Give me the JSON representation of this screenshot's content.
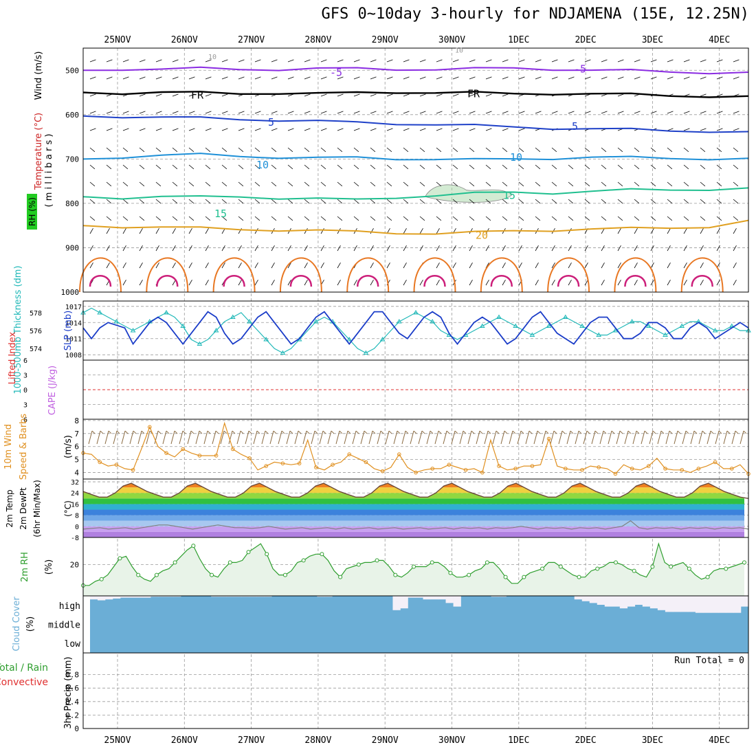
{
  "title": "GFS 0~10day 3-hourly for NDJAMENA (15E, 12.25N)",
  "colors": {
    "wind_barb": "#000000",
    "temp_m5": "#8a2be2",
    "temp_fr": "#000000",
    "temp_5": "#1e40c8",
    "temp_10": "#1e90d8",
    "temp_15": "#1fbf8f",
    "temp_20": "#e0a020",
    "temp_25": "#e87722",
    "temp_30": "#cc1f7a",
    "rh": "#a8d8a8",
    "slp": "#1a3cc8",
    "thickness": "#20b8b8",
    "lifted_index": "#e03030",
    "cape": "#c060e0",
    "wind10m": "#e09020",
    "temp2m_fill": "#e06020",
    "dewpt": "#808080",
    "rh2m": "#2e9e2e",
    "cloud": "#6baed6",
    "precip_total": "#2e9e2e",
    "precip_conv": "#e03030"
  },
  "dates": [
    "25NOV",
    "26NOV",
    "27NOV",
    "28NOV",
    "29NOV",
    "30NOV",
    "1DEC",
    "2DEC",
    "3DEC",
    "4DEC"
  ],
  "panels": {
    "upper": {
      "ylabel_wind": "Wind (m/s)",
      "ylabel_temp": "Temperature (°C)",
      "ylabel_rh": "RH (%)",
      "ylabel_mb": "( m i l l i b a r s )",
      "contour_labels": {
        "m5": "-5",
        "fr": "FR",
        "five": "5",
        "ten": "10",
        "fifteen": "15",
        "twenty": "20",
        "rh10": "10"
      }
    },
    "slp": {
      "ylabel_thick": "1000-500mb Thickness (dm)",
      "ylabel_slp": "SLP (mb)"
    },
    "li": {
      "ylabel_li": "Lifted Index",
      "ylabel_cape": "CAPE (J/kg)"
    },
    "wind": {
      "ylabel_main": "10m Wind",
      "ylabel_sub": "Speed & Barbs",
      "ylabel_unit": "(m/s)"
    },
    "temp": {
      "ylabel_1": "2m Temp",
      "ylabel_2": "2m DewPt",
      "ylabel_3": "(6hr Min/Max)",
      "ylabel_unit": "(°C)"
    },
    "rh": {
      "ylabel": "2m RH",
      "unit": "(%)"
    },
    "cloud": {
      "ylabel": "Cloud Cover",
      "unit": "(%)",
      "levels": [
        "high",
        "middle",
        "low"
      ]
    },
    "precip": {
      "ylabel_total": "Total / Rain",
      "ylabel_conv": "Convective",
      "ylabel_main": "3hr Precip (mm)",
      "run_total": "Run Total = 0"
    }
  },
  "chart_data": [
    {
      "panel": "upper-air",
      "type": "contour",
      "y_axis": "pressure (mb)",
      "ylim": [
        1000,
        450
      ],
      "yticks": [
        500,
        600,
        700,
        800,
        900,
        1000
      ],
      "x_range_days": [
        0,
        10
      ],
      "temperature_contours_mb": {
        "-5": [
          500,
          497,
          498,
          496,
          497,
          498,
          497,
          496,
          497,
          498,
          497,
          495,
          497,
          500,
          501,
          503,
          505,
          506
        ],
        "FR": [
          550,
          551,
          550,
          551,
          552,
          551,
          553,
          551,
          549,
          550,
          551,
          553,
          552,
          553,
          555,
          557,
          558,
          560
        ],
        "5": [
          603,
          604,
          606,
          608,
          610,
          612,
          615,
          618,
          620,
          622,
          625,
          628,
          630,
          632,
          634,
          636,
          637,
          640
        ],
        "10": [
          700,
          695,
          692,
          690,
          693,
          696,
          698,
          697,
          699,
          700,
          702,
          700,
          698,
          696,
          697,
          698,
          699,
          700
        ],
        "15": [
          785,
          787,
          785,
          786,
          784,
          788,
          790,
          792,
          786,
          782,
          778,
          775,
          776,
          773,
          770,
          769,
          768,
          767
        ],
        "20": [
          850,
          852,
          854,
          856,
          858,
          860,
          862,
          864,
          866,
          868,
          866,
          862,
          860,
          858,
          857,
          855,
          852,
          840
        ]
      },
      "rh_shaded_region": {
        "day_start": 4.6,
        "day_end": 5.9,
        "mb_top": 755,
        "mb_bottom": 800,
        "value": 10
      }
    },
    {
      "panel": "slp-thickness",
      "type": "line",
      "series": [
        {
          "name": "SLP (mb)",
          "axis": "right",
          "ylim": [
            1008,
            1017
          ],
          "values": [
            1013,
            1011,
            1013,
            1014,
            1013.5,
            1013,
            1010,
            1012,
            1014,
            1015,
            1014,
            1012,
            1010,
            1012,
            1014,
            1016,
            1015,
            1012,
            1010,
            1011,
            1013,
            1015,
            1016,
            1014,
            1012,
            1010,
            1011,
            1013,
            1015,
            1016,
            1014,
            1012,
            1010,
            1012,
            1014,
            1016,
            1016,
            1014,
            1012,
            1011,
            1013,
            1015,
            1016,
            1015,
            1012,
            1010,
            1012,
            1014,
            1015,
            1014,
            1012,
            1010,
            1011,
            1013,
            1015,
            1016,
            1014,
            1012,
            1011,
            1010,
            1012,
            1014,
            1015,
            1015,
            1013,
            1011,
            1011,
            1012,
            1014,
            1014,
            1013,
            1011,
            1011,
            1013,
            1014,
            1013,
            1011,
            1012,
            1013,
            1014,
            1013
          ]
        },
        {
          "name": "1000-500mb Thickness (dm)",
          "axis": "left",
          "ylim": [
            573,
            579
          ],
          "values": [
            578,
            578.5,
            578,
            577.5,
            577,
            576.5,
            576,
            576.5,
            577,
            577.5,
            578,
            577.5,
            576.5,
            575,
            574.5,
            575,
            576,
            577,
            577.5,
            578,
            577,
            576,
            575,
            574,
            573.5,
            574,
            575,
            576,
            577,
            577.5,
            577,
            576,
            575,
            574,
            573.5,
            574,
            575,
            576,
            577,
            577.5,
            578,
            577.5,
            577,
            576,
            575.5,
            575,
            575.5,
            576,
            576.5,
            577,
            577.5,
            577,
            576.5,
            576,
            575.5,
            576,
            576.5,
            577,
            577.5,
            577,
            576.5,
            576,
            575.5,
            575.5,
            576,
            576.5,
            577,
            577,
            576.5,
            576,
            575.5,
            576,
            576.5,
            577,
            577,
            576.5,
            576,
            576,
            576.5,
            576,
            576
          ]
        }
      ],
      "left_ticks": [
        574,
        576,
        578
      ],
      "right_ticks": [
        1008,
        1011,
        1014,
        1017
      ]
    },
    {
      "panel": "lifted-index-cape",
      "type": "line",
      "ylim": [
        -6,
        6
      ],
      "yticks_labels": [
        "-6",
        "-3",
        "0",
        "3",
        "6"
      ],
      "series": [
        {
          "name": "Lifted Index",
          "values": []
        },
        {
          "name": "CAPE (J/kg)",
          "values": []
        }
      ],
      "reference_line": 0
    },
    {
      "panel": "10m-wind",
      "type": "line",
      "ylim": [
        3.5,
        8
      ],
      "yticks": [
        4,
        5,
        6,
        7,
        8
      ],
      "series": [
        {
          "name": "Speed",
          "values": [
            5.5,
            5.4,
            4.8,
            4.5,
            4.6,
            4.3,
            4.2,
            5.8,
            7.5,
            6,
            5.5,
            5.2,
            5.8,
            5.5,
            5.3,
            5.3,
            5.3,
            7.8,
            5.8,
            5.4,
            5.1,
            4.2,
            4.5,
            4.8,
            4.7,
            4.6,
            4.7,
            6.5,
            4.4,
            4.2,
            4.6,
            4.8,
            5.4,
            5.1,
            4.8,
            4.3,
            4.1,
            4.4,
            5.4,
            4.4,
            4.0,
            4.2,
            4.3,
            4.3,
            4.6,
            4.4,
            4.2,
            4.3,
            4.0,
            6.5,
            4.5,
            4.2,
            4.3,
            4.5,
            4.5,
            4.6,
            6.6,
            4.5,
            4.3,
            4.2,
            4.2,
            4.5,
            4.4,
            4.3,
            3.9,
            4.6,
            4.3,
            4.2,
            4.5,
            5.1,
            4.3,
            4.2,
            4.2,
            4.0,
            4.3,
            4.5,
            4.8,
            4.3,
            4.3,
            4.6,
            3.9
          ]
        }
      ]
    },
    {
      "panel": "2m-temp",
      "type": "area",
      "ylim": [
        -8,
        34
      ],
      "yticks": [
        -8,
        0,
        8,
        16,
        24,
        32
      ],
      "series": [
        {
          "name": "2m Temp",
          "values": [
            25,
            23,
            21,
            21,
            24,
            29,
            31,
            28,
            25,
            23,
            21,
            21,
            24,
            29,
            31,
            28,
            25,
            23,
            21,
            21,
            24,
            29,
            31,
            28,
            25,
            23,
            21,
            21,
            24,
            29,
            31,
            28,
            25,
            23,
            21,
            21,
            24,
            29,
            31,
            28,
            25,
            23,
            21,
            21,
            24,
            29,
            31,
            28,
            25,
            23,
            21,
            21,
            24,
            29,
            31,
            28,
            25,
            23,
            21,
            21,
            24,
            29,
            31,
            28,
            25,
            23,
            21,
            21,
            24,
            29,
            31,
            28,
            25,
            23,
            21,
            21,
            24,
            29,
            31,
            28,
            25,
            23,
            21,
            20
          ]
        },
        {
          "name": "2m DewPt",
          "values": [
            -2,
            -1.5,
            -1,
            -2,
            -1.5,
            -1,
            -2,
            -1,
            0,
            1,
            1,
            0,
            -1,
            -2,
            -1,
            0,
            1,
            0,
            -1,
            -1,
            -1.5,
            -1,
            0,
            -1,
            -2,
            -1.5,
            -1,
            -2,
            -1.5,
            -1,
            -2,
            -1,
            -2,
            -1.5,
            -1,
            -2,
            -1.5,
            -1,
            -2,
            -1.5,
            -1,
            -2,
            -1.5,
            -1,
            -2,
            -1,
            -1.5,
            -1,
            -2,
            -1,
            -1.5,
            -1,
            0,
            -1,
            -2,
            -1,
            -1.5,
            -1,
            -2,
            -1,
            -1.5,
            -1,
            -2,
            -1,
            0,
            4,
            -1,
            -2,
            -1,
            -1.5,
            -1,
            -2,
            -1,
            -1.5,
            -1,
            -2,
            -1,
            -1.5,
            -1,
            -2
          ]
        }
      ]
    },
    {
      "panel": "2m-rh",
      "type": "area",
      "ylim": [
        5,
        33
      ],
      "yticks": [
        20
      ],
      "series": [
        {
          "name": "2m RH",
          "values": [
            10,
            10,
            12,
            13,
            15,
            19,
            23,
            24,
            19,
            15,
            13,
            12,
            15,
            17,
            18,
            21,
            24,
            27,
            29,
            23,
            18,
            15,
            14,
            18,
            21,
            21,
            22,
            26,
            28,
            30,
            25,
            18,
            15,
            15,
            17,
            21,
            22,
            24,
            25,
            25,
            22,
            17,
            14,
            18,
            19,
            20,
            21,
            21,
            22,
            22,
            19,
            15,
            14,
            16,
            19,
            19,
            19,
            21,
            21,
            19,
            16,
            14,
            14,
            15,
            17,
            18,
            21,
            21,
            18,
            14,
            11,
            11,
            14,
            16,
            17,
            18,
            21,
            21,
            19,
            17,
            15,
            14,
            14,
            17,
            18,
            19,
            21,
            21,
            20,
            18,
            17,
            15,
            14,
            19,
            30,
            21,
            19,
            20,
            21,
            18,
            15,
            13,
            14,
            17,
            18,
            18,
            19,
            20,
            21
          ]
        }
      ]
    },
    {
      "panel": "cloud-cover",
      "type": "bar",
      "categories": [
        "high",
        "middle",
        "low"
      ],
      "high_cover_pct": [
        80,
        75,
        80,
        85,
        90,
        90,
        90,
        90,
        95,
        95,
        95,
        95,
        100,
        100,
        100,
        100,
        95,
        95,
        95,
        95,
        95,
        95,
        95,
        95,
        100,
        100,
        100,
        100,
        100,
        100,
        95,
        95,
        100,
        100,
        100,
        100,
        100,
        100,
        100,
        100,
        20,
        30,
        90,
        90,
        80,
        80,
        80,
        60,
        40,
        100,
        100,
        100,
        100,
        95,
        95,
        100,
        100,
        100,
        100,
        100,
        100,
        100,
        100,
        100,
        80,
        70,
        60,
        50,
        40,
        40,
        30,
        40,
        50,
        40,
        30,
        20,
        10,
        10,
        10,
        10,
        5,
        5,
        5,
        5,
        5,
        5,
        40
      ],
      "middle_cover_pct": 100,
      "low_cover_pct": 100
    },
    {
      "panel": "3hr-precip",
      "type": "bar",
      "ylim": [
        0,
        1
      ],
      "yticks": [
        0,
        0.2,
        0.4,
        0.6,
        0.8
      ],
      "series": [
        {
          "name": "Total / Rain",
          "values": []
        },
        {
          "name": "Convective",
          "values": []
        }
      ]
    }
  ]
}
